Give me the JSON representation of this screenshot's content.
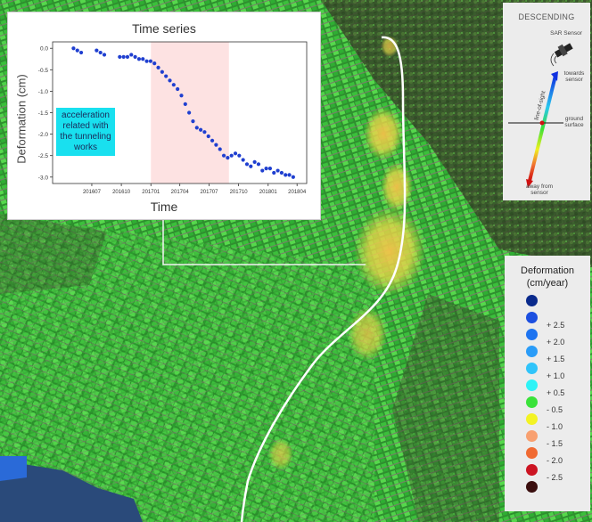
{
  "time_series_panel": {
    "title": "Time series",
    "ylabel": "Deformation (cm)",
    "xlabel": "Time",
    "annotation": "acceleration related with the tunneling works",
    "highlight_range": [
      "2017-01",
      "2017-09"
    ]
  },
  "chart_data": {
    "type": "scatter",
    "title": "Time series",
    "xlabel": "Time",
    "ylabel": "Deformation (cm)",
    "ylim": [
      -3.15,
      0.15
    ],
    "yticks": [
      0.0,
      -0.5,
      -1.0,
      -1.5,
      -2.0,
      -2.5,
      -3.0
    ],
    "ytick_labels": [
      "0.0",
      "-0.5",
      "-1.0",
      "-1.5",
      "-2.0",
      "-2.5",
      "-3.0"
    ],
    "xlim": [
      "2016-03",
      "2018-05"
    ],
    "xticks": [
      "2016-07",
      "2016-10",
      "2017-01",
      "2017-04",
      "2017-07",
      "2017-10",
      "2018-01",
      "2018-04"
    ],
    "xtick_labels": [
      "201607",
      "201610",
      "201701",
      "201704",
      "201707",
      "201710",
      "201801",
      "201804"
    ],
    "marker_color": "#1f3fd0",
    "highlight_color": "#fde2e2",
    "grid": false,
    "series": [
      {
        "x": [
          "2016-05-05",
          "2016-05-17",
          "2016-05-29",
          "2016-07-16",
          "2016-07-28",
          "2016-08-09",
          "2016-09-26",
          "2016-10-08",
          "2016-10-20",
          "2016-11-01",
          "2016-11-13",
          "2016-11-25",
          "2016-12-07",
          "2016-12-19",
          "2016-12-31",
          "2017-01-12",
          "2017-01-24",
          "2017-02-05",
          "2017-02-17",
          "2017-03-01",
          "2017-03-13",
          "2017-03-25",
          "2017-04-06",
          "2017-04-18",
          "2017-04-30",
          "2017-05-12",
          "2017-05-24",
          "2017-06-05",
          "2017-06-17",
          "2017-06-29",
          "2017-07-11",
          "2017-07-23",
          "2017-08-04",
          "2017-08-16",
          "2017-08-28",
          "2017-09-09",
          "2017-09-21",
          "2017-10-03",
          "2017-10-15",
          "2017-10-27",
          "2017-11-08",
          "2017-11-20",
          "2017-12-02",
          "2017-12-14",
          "2017-12-26",
          "2018-01-07",
          "2018-01-19",
          "2018-01-31",
          "2018-02-12",
          "2018-02-24",
          "2018-03-08",
          "2018-03-20"
        ],
        "y": [
          0.0,
          -0.05,
          -0.1,
          -0.05,
          -0.1,
          -0.15,
          -0.2,
          -0.2,
          -0.2,
          -0.15,
          -0.2,
          -0.25,
          -0.25,
          -0.3,
          -0.3,
          -0.35,
          -0.45,
          -0.55,
          -0.65,
          -0.75,
          -0.85,
          -0.95,
          -1.1,
          -1.3,
          -1.5,
          -1.7,
          -1.85,
          -1.9,
          -1.95,
          -2.05,
          -2.15,
          -2.25,
          -2.35,
          -2.5,
          -2.55,
          -2.5,
          -2.45,
          -2.5,
          -2.6,
          -2.7,
          -2.75,
          -2.65,
          -2.7,
          -2.85,
          -2.8,
          -2.8,
          -2.9,
          -2.85,
          -2.9,
          -2.95,
          -2.95,
          -3.0
        ]
      }
    ]
  },
  "descending_panel": {
    "title": "DESCENDING",
    "sar_sensor": "SAR Sensor",
    "towards_sensor": "towards sensor",
    "line_of_sight": "line-of-sight",
    "ground_surface": "ground surface",
    "away_from_sensor": "away from sensor"
  },
  "legend": {
    "title_line1": "Deformation",
    "title_line2": "(cm/year)",
    "items": [
      {
        "label": "",
        "color": "#0a2a8c"
      },
      {
        "label": "+ 2.5",
        "color": "#1c4fe0"
      },
      {
        "label": "+ 2.0",
        "color": "#1e74f0"
      },
      {
        "label": "+ 1.5",
        "color": "#2a9cf8"
      },
      {
        "label": "+ 1.0",
        "color": "#30c4fa"
      },
      {
        "label": "+ 0.5",
        "color": "#2ef3f6"
      },
      {
        "label": "- 0.5",
        "color": "#3ae23a"
      },
      {
        "label": "- 1.0",
        "color": "#f3f324"
      },
      {
        "label": "- 1.5",
        "color": "#f8a070"
      },
      {
        "label": "- 2.0",
        "color": "#f06a32"
      },
      {
        "label": "- 2.5",
        "color": "#cc1422"
      },
      {
        "label": "",
        "color": "#3a0e0e"
      }
    ]
  }
}
